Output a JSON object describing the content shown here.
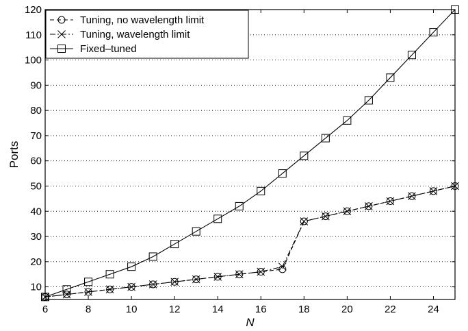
{
  "chart_data": {
    "type": "line",
    "xlabel": "N",
    "ylabel": "Ports",
    "xlim": [
      6,
      25
    ],
    "ylim": [
      5,
      120
    ],
    "xticks": [
      6,
      8,
      10,
      12,
      14,
      16,
      18,
      20,
      22,
      24
    ],
    "yticks": [
      10,
      20,
      30,
      40,
      50,
      60,
      70,
      80,
      90,
      100,
      110,
      120
    ],
    "grid": "horizontal, dotted",
    "legend_position": "top-left",
    "x": [
      6,
      7,
      8,
      9,
      10,
      11,
      12,
      13,
      14,
      15,
      16,
      17,
      18,
      19,
      20,
      21,
      22,
      23,
      24,
      25
    ],
    "series": [
      {
        "name": "Tuning, no wavelength limit",
        "marker": "circle",
        "line": "dashed",
        "values": [
          6,
          7,
          8,
          9,
          10,
          11,
          12,
          13,
          14,
          15,
          16,
          17,
          36,
          38,
          40,
          42,
          44,
          46,
          48,
          50
        ]
      },
      {
        "name": "Tuning, wavelength limit",
        "marker": "x",
        "line": "dash-dot",
        "values": [
          6,
          7,
          8,
          9,
          10,
          11,
          12,
          13,
          14,
          15,
          16,
          18,
          36,
          38,
          40,
          42,
          44,
          46,
          48,
          50
        ]
      },
      {
        "name": "Fixed–tuned",
        "marker": "square",
        "line": "solid",
        "values": [
          6,
          9,
          12,
          15,
          18,
          22,
          27,
          32,
          37,
          42,
          48,
          55,
          62,
          69,
          76,
          84,
          93,
          102,
          111,
          120
        ]
      }
    ]
  }
}
